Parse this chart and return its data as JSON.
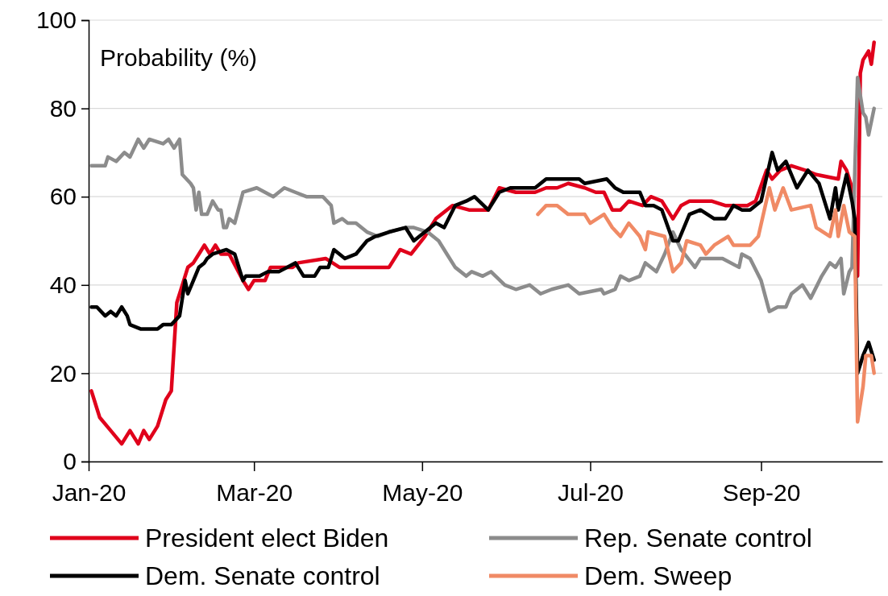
{
  "chart_data": {
    "type": "line",
    "ylabel": "Probability (%)",
    "ylim": [
      0,
      100
    ],
    "yticks": [
      0,
      20,
      40,
      60,
      80,
      100
    ],
    "xlim": [
      "2020-01-01",
      "2020-10-15"
    ],
    "xticks": [
      {
        "value": "2020-01-01",
        "label": "Jan-20"
      },
      {
        "value": "2020-03-01",
        "label": "Mar-20"
      },
      {
        "value": "2020-05-01",
        "label": "May-20"
      },
      {
        "value": "2020-07-01",
        "label": "Jul-20"
      },
      {
        "value": "2020-09-01",
        "label": "Sep-20"
      }
    ],
    "grid": "y",
    "legend": "bottom",
    "line_style": "solid",
    "marker": "none",
    "series": [
      {
        "name": "President elect Biden",
        "color": "#e0001b",
        "x": [
          "2020-01-02",
          "2020-01-03",
          "2020-01-05",
          "2020-01-09",
          "2020-01-13",
          "2020-01-16",
          "2020-01-19",
          "2020-01-21",
          "2020-01-23",
          "2020-01-26",
          "2020-01-29",
          "2020-01-31",
          "2020-02-02",
          "2020-02-04",
          "2020-02-06",
          "2020-02-08",
          "2020-02-10",
          "2020-02-12",
          "2020-02-14",
          "2020-02-16",
          "2020-02-18",
          "2020-02-21",
          "2020-02-26",
          "2020-02-28",
          "2020-03-01",
          "2020-03-05",
          "2020-03-07",
          "2020-03-15",
          "2020-03-17",
          "2020-03-27",
          "2020-04-01",
          "2020-04-19",
          "2020-04-23",
          "2020-04-27",
          "2020-05-02",
          "2020-05-06",
          "2020-05-12",
          "2020-05-18",
          "2020-05-25",
          "2020-05-29",
          "2020-06-04",
          "2020-06-11",
          "2020-06-15",
          "2020-06-19",
          "2020-06-23",
          "2020-06-29",
          "2020-07-03",
          "2020-07-06",
          "2020-07-09",
          "2020-07-12",
          "2020-07-15",
          "2020-07-20",
          "2020-07-23",
          "2020-07-27",
          "2020-07-31",
          "2020-08-03",
          "2020-08-06",
          "2020-08-14",
          "2020-08-19",
          "2020-08-27",
          "2020-08-30",
          "2020-09-03",
          "2020-09-05",
          "2020-09-08",
          "2020-09-12",
          "2020-09-17",
          "2020-09-21",
          "2020-09-29",
          "2020-09-30",
          "2020-10-02",
          "2020-10-04",
          "2020-10-06",
          "2020-10-07",
          "2020-10-08",
          "2020-10-10",
          "2020-10-11",
          "2020-10-12"
        ],
        "values": [
          16,
          14,
          10,
          7,
          4,
          7,
          4,
          7,
          5,
          8,
          14,
          16,
          36,
          40,
          44,
          45,
          47,
          49,
          47,
          49,
          47,
          47,
          41,
          39,
          41,
          41,
          44,
          44,
          45,
          46,
          44,
          44,
          48,
          47,
          51,
          55,
          58,
          57,
          57,
          62,
          61,
          61,
          62,
          62,
          63,
          62,
          61,
          61,
          57,
          57,
          59,
          58,
          60,
          59,
          55,
          58,
          59,
          59,
          58,
          58,
          59,
          66,
          64,
          66,
          67,
          66,
          65,
          64,
          68,
          66,
          62,
          42,
          88,
          91,
          93,
          90,
          95
        ]
      },
      {
        "name": "Rep. Senate control",
        "color": "#8c8c8c",
        "x": [
          "2020-01-02",
          "2020-01-07",
          "2020-01-08",
          "2020-01-11",
          "2020-01-14",
          "2020-01-16",
          "2020-01-19",
          "2020-01-21",
          "2020-01-23",
          "2020-01-28",
          "2020-01-30",
          "2020-02-01",
          "2020-02-03",
          "2020-02-04",
          "2020-02-07",
          "2020-02-08",
          "2020-02-09",
          "2020-02-10",
          "2020-02-11",
          "2020-02-13",
          "2020-02-15",
          "2020-02-17",
          "2020-02-18",
          "2020-02-19",
          "2020-02-20",
          "2020-02-21",
          "2020-02-23",
          "2020-02-26",
          "2020-03-02",
          "2020-03-05",
          "2020-03-08",
          "2020-03-12",
          "2020-03-16",
          "2020-03-20",
          "2020-03-26",
          "2020-03-29",
          "2020-03-30",
          "2020-04-02",
          "2020-04-04",
          "2020-04-07",
          "2020-04-11",
          "2020-04-15",
          "2020-04-19",
          "2020-04-25",
          "2020-04-28",
          "2020-05-03",
          "2020-05-07",
          "2020-05-10",
          "2020-05-13",
          "2020-05-17",
          "2020-05-19",
          "2020-05-23",
          "2020-05-26",
          "2020-05-31",
          "2020-06-04",
          "2020-06-09",
          "2020-06-13",
          "2020-06-17",
          "2020-06-23",
          "2020-06-27",
          "2020-07-05",
          "2020-07-06",
          "2020-07-10",
          "2020-07-12",
          "2020-07-15",
          "2020-07-19",
          "2020-07-21",
          "2020-07-25",
          "2020-07-28",
          "2020-07-31",
          "2020-08-03",
          "2020-08-08",
          "2020-08-10",
          "2020-08-18",
          "2020-08-24",
          "2020-08-25",
          "2020-08-28",
          "2020-09-01",
          "2020-09-04",
          "2020-09-07",
          "2020-09-10",
          "2020-09-12",
          "2020-09-16",
          "2020-09-19",
          "2020-09-23",
          "2020-09-26",
          "2020-09-28",
          "2020-09-30",
          "2020-10-01",
          "2020-10-03",
          "2020-10-04",
          "2020-10-06",
          "2020-10-08",
          "2020-10-09",
          "2020-10-10",
          "2020-10-12"
        ],
        "values": [
          67,
          67,
          69,
          68,
          70,
          69,
          73,
          71,
          73,
          72,
          73,
          71,
          73,
          65,
          63,
          62,
          57,
          61,
          56,
          56,
          59,
          57,
          57,
          53,
          53,
          55,
          54,
          61,
          62,
          61,
          60,
          62,
          61,
          60,
          60,
          58,
          54,
          55,
          54,
          54,
          52,
          51,
          52,
          53,
          53,
          52,
          50,
          47,
          44,
          42,
          43,
          42,
          43,
          40,
          39,
          40,
          38,
          39,
          40,
          38,
          39,
          38,
          39,
          42,
          41,
          42,
          45,
          43,
          47,
          52,
          48,
          44,
          46,
          46,
          44,
          47,
          46,
          41,
          34,
          35,
          35,
          38,
          40,
          37,
          42,
          45,
          44,
          46,
          38,
          43,
          44,
          87,
          79,
          78,
          74,
          80
        ]
      },
      {
        "name": "Dem. Senate control",
        "color": "#000000",
        "x": [
          "2020-01-02",
          "2020-01-04",
          "2020-01-07",
          "2020-01-09",
          "2020-01-11",
          "2020-01-13",
          "2020-01-15",
          "2020-01-16",
          "2020-01-20",
          "2020-01-26",
          "2020-01-28",
          "2020-01-31",
          "2020-02-03",
          "2020-02-05",
          "2020-02-06",
          "2020-02-08",
          "2020-02-10",
          "2020-02-12",
          "2020-02-13",
          "2020-02-15",
          "2020-02-20",
          "2020-02-23",
          "2020-02-26",
          "2020-02-27",
          "2020-03-01",
          "2020-03-03",
          "2020-03-06",
          "2020-03-10",
          "2020-03-16",
          "2020-03-19",
          "2020-03-23",
          "2020-03-25",
          "2020-03-28",
          "2020-03-30",
          "2020-04-01",
          "2020-04-03",
          "2020-04-07",
          "2020-04-11",
          "2020-04-14",
          "2020-04-19",
          "2020-04-25",
          "2020-04-28",
          "2020-05-02",
          "2020-05-06",
          "2020-05-09",
          "2020-05-13",
          "2020-05-17",
          "2020-05-20",
          "2020-05-25",
          "2020-05-29",
          "2020-06-02",
          "2020-06-11",
          "2020-06-15",
          "2020-06-19",
          "2020-06-22",
          "2020-06-27",
          "2020-06-29",
          "2020-07-07",
          "2020-07-10",
          "2020-07-13",
          "2020-07-19",
          "2020-07-21",
          "2020-07-24",
          "2020-07-27",
          "2020-07-31",
          "2020-08-02",
          "2020-08-06",
          "2020-08-10",
          "2020-08-15",
          "2020-08-19",
          "2020-08-22",
          "2020-08-25",
          "2020-08-28",
          "2020-09-01",
          "2020-09-05",
          "2020-09-07",
          "2020-09-10",
          "2020-09-14",
          "2020-09-18",
          "2020-09-22",
          "2020-09-26",
          "2020-09-28",
          "2020-09-29",
          "2020-10-02",
          "2020-10-04",
          "2020-10-05",
          "2020-10-06",
          "2020-10-08",
          "2020-10-10",
          "2020-10-12"
        ],
        "values": [
          35,
          35,
          33,
          34,
          33,
          35,
          33,
          31,
          30,
          30,
          31,
          31,
          33,
          41,
          38,
          41,
          44,
          45,
          46,
          47,
          48,
          47,
          41,
          42,
          42,
          42,
          43,
          43,
          45,
          42,
          42,
          44,
          44,
          48,
          47,
          46,
          47,
          50,
          51,
          52,
          53,
          50,
          52,
          54,
          53,
          58,
          59,
          60,
          57,
          61,
          62,
          62,
          64,
          64,
          64,
          64,
          63,
          64,
          62,
          61,
          61,
          58,
          58,
          57,
          50,
          50,
          56,
          57,
          55,
          55,
          58,
          57,
          57,
          59,
          70,
          66,
          68,
          62,
          66,
          63,
          55,
          62,
          57,
          65,
          59,
          55,
          20,
          24,
          27,
          23
        ]
      },
      {
        "name": "Dem. Sweep",
        "color": "#f08a65",
        "x": [
          "2020-06-12",
          "2020-06-15",
          "2020-06-19",
          "2020-06-23",
          "2020-06-29",
          "2020-07-01",
          "2020-07-06",
          "2020-07-09",
          "2020-07-12",
          "2020-07-15",
          "2020-07-19",
          "2020-07-21",
          "2020-07-22",
          "2020-07-28",
          "2020-07-31",
          "2020-08-03",
          "2020-08-05",
          "2020-08-10",
          "2020-08-12",
          "2020-08-15",
          "2020-08-20",
          "2020-08-22",
          "2020-08-27",
          "2020-08-28",
          "2020-08-31",
          "2020-09-04",
          "2020-09-06",
          "2020-09-09",
          "2020-09-12",
          "2020-09-19",
          "2020-09-21",
          "2020-09-26",
          "2020-09-28",
          "2020-09-29",
          "2020-10-01",
          "2020-10-03",
          "2020-10-05",
          "2020-10-06",
          "2020-10-08",
          "2020-10-09",
          "2020-10-11",
          "2020-10-12"
        ],
        "values": [
          56,
          58,
          58,
          56,
          56,
          54,
          56,
          53,
          51,
          54,
          51,
          48,
          52,
          51,
          43,
          45,
          50,
          49,
          47,
          49,
          51,
          49,
          49,
          49,
          51,
          62,
          57,
          62,
          57,
          58,
          53,
          51,
          57,
          51,
          58,
          52,
          51,
          9,
          17,
          24,
          24,
          20
        ]
      }
    ]
  }
}
